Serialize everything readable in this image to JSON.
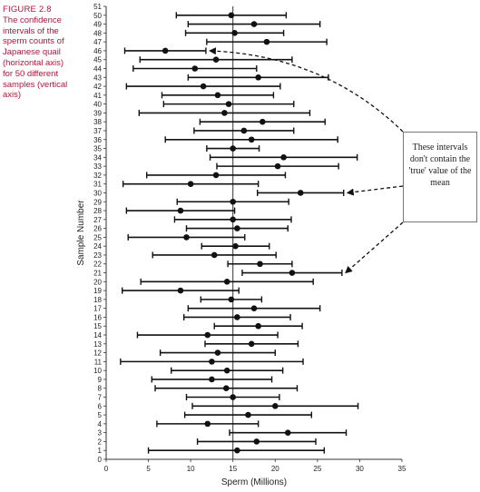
{
  "caption": {
    "figure_label": "FIGURE 2.8",
    "text": "The confidence intervals of the sperm counts of Japanese quail (horizontal axis) for 50 different samples (vertical axis)"
  },
  "callout": {
    "text": "These intervals don't contain the 'true' value of the mean"
  },
  "chart_data": {
    "type": "scatter",
    "title": "",
    "xlabel": "Sperm (Millions)",
    "ylabel": "Sample Number",
    "xlim": [
      0,
      35
    ],
    "ylim": [
      0,
      51
    ],
    "x_ticks": [
      0,
      5,
      10,
      15,
      20,
      25,
      30,
      35
    ],
    "y_ticks": [
      0,
      1,
      2,
      3,
      4,
      5,
      6,
      7,
      8,
      9,
      10,
      11,
      12,
      13,
      14,
      15,
      16,
      17,
      18,
      19,
      20,
      21,
      22,
      23,
      24,
      25,
      26,
      27,
      28,
      29,
      30,
      31,
      32,
      33,
      34,
      35,
      36,
      37,
      38,
      39,
      40,
      41,
      42,
      43,
      44,
      45,
      46,
      47,
      48,
      49,
      50,
      51
    ],
    "true_mean": 15,
    "grid": false,
    "highlighted_samples": [
      30,
      21,
      46
    ],
    "intervals": [
      {
        "sample": 1,
        "mean": 15.5,
        "low": 5.0,
        "high": 25.8
      },
      {
        "sample": 2,
        "mean": 17.8,
        "low": 10.8,
        "high": 24.8
      },
      {
        "sample": 3,
        "mean": 21.5,
        "low": 14.6,
        "high": 28.4
      },
      {
        "sample": 4,
        "mean": 12.0,
        "low": 6.0,
        "high": 18.0
      },
      {
        "sample": 5,
        "mean": 16.8,
        "low": 9.3,
        "high": 24.3
      },
      {
        "sample": 6,
        "mean": 20.0,
        "low": 10.2,
        "high": 29.8
      },
      {
        "sample": 7,
        "mean": 15.0,
        "low": 9.5,
        "high": 20.5
      },
      {
        "sample": 8,
        "mean": 14.2,
        "low": 5.8,
        "high": 22.6
      },
      {
        "sample": 9,
        "mean": 12.5,
        "low": 5.4,
        "high": 19.6
      },
      {
        "sample": 10,
        "mean": 14.3,
        "low": 7.7,
        "high": 20.9
      },
      {
        "sample": 11,
        "mean": 12.5,
        "low": 1.7,
        "high": 23.3
      },
      {
        "sample": 12,
        "mean": 13.2,
        "low": 6.4,
        "high": 20.0
      },
      {
        "sample": 13,
        "mean": 17.2,
        "low": 11.7,
        "high": 22.7
      },
      {
        "sample": 14,
        "mean": 12.0,
        "low": 3.7,
        "high": 20.3
      },
      {
        "sample": 15,
        "mean": 18.0,
        "low": 12.8,
        "high": 23.2
      },
      {
        "sample": 16,
        "mean": 15.5,
        "low": 9.2,
        "high": 21.8
      },
      {
        "sample": 17,
        "mean": 17.5,
        "low": 9.7,
        "high": 25.3
      },
      {
        "sample": 18,
        "mean": 14.8,
        "low": 11.2,
        "high": 18.4
      },
      {
        "sample": 19,
        "mean": 8.8,
        "low": 1.9,
        "high": 15.7
      },
      {
        "sample": 20,
        "mean": 14.3,
        "low": 4.1,
        "high": 24.5
      },
      {
        "sample": 21,
        "mean": 22.0,
        "low": 16.1,
        "high": 27.9
      },
      {
        "sample": 22,
        "mean": 18.2,
        "low": 14.4,
        "high": 22.0
      },
      {
        "sample": 23,
        "mean": 12.8,
        "low": 5.5,
        "high": 20.1
      },
      {
        "sample": 24,
        "mean": 15.3,
        "low": 11.3,
        "high": 19.3
      },
      {
        "sample": 25,
        "mean": 9.5,
        "low": 2.6,
        "high": 16.4
      },
      {
        "sample": 26,
        "mean": 15.5,
        "low": 9.5,
        "high": 21.5
      },
      {
        "sample": 27,
        "mean": 15.0,
        "low": 8.1,
        "high": 21.9
      },
      {
        "sample": 28,
        "mean": 8.8,
        "low": 2.4,
        "high": 15.2
      },
      {
        "sample": 29,
        "mean": 15.0,
        "low": 8.4,
        "high": 21.6
      },
      {
        "sample": 30,
        "mean": 23.0,
        "low": 17.9,
        "high": 28.1
      },
      {
        "sample": 31,
        "mean": 10.0,
        "low": 2.0,
        "high": 18.0
      },
      {
        "sample": 32,
        "mean": 13.0,
        "low": 4.8,
        "high": 21.2
      },
      {
        "sample": 33,
        "mean": 20.3,
        "low": 13.1,
        "high": 27.5
      },
      {
        "sample": 34,
        "mean": 21.0,
        "low": 12.3,
        "high": 29.7
      },
      {
        "sample": 35,
        "mean": 15.0,
        "low": 11.9,
        "high": 18.1
      },
      {
        "sample": 36,
        "mean": 17.2,
        "low": 7.0,
        "high": 27.4
      },
      {
        "sample": 37,
        "mean": 16.3,
        "low": 10.4,
        "high": 22.2
      },
      {
        "sample": 38,
        "mean": 18.5,
        "low": 11.1,
        "high": 25.9
      },
      {
        "sample": 39,
        "mean": 14.0,
        "low": 3.9,
        "high": 24.1
      },
      {
        "sample": 40,
        "mean": 14.5,
        "low": 6.8,
        "high": 22.2
      },
      {
        "sample": 41,
        "mean": 13.2,
        "low": 6.6,
        "high": 19.8
      },
      {
        "sample": 42,
        "mean": 11.5,
        "low": 2.4,
        "high": 20.6
      },
      {
        "sample": 43,
        "mean": 18.0,
        "low": 9.7,
        "high": 26.3
      },
      {
        "sample": 44,
        "mean": 10.5,
        "low": 3.2,
        "high": 17.8
      },
      {
        "sample": 45,
        "mean": 13.0,
        "low": 4.0,
        "high": 22.0
      },
      {
        "sample": 46,
        "mean": 7.0,
        "low": 2.2,
        "high": 11.8
      },
      {
        "sample": 47,
        "mean": 19.0,
        "low": 11.9,
        "high": 26.1
      },
      {
        "sample": 48,
        "mean": 15.2,
        "low": 9.4,
        "high": 21.0
      },
      {
        "sample": 49,
        "mean": 17.5,
        "low": 9.7,
        "high": 25.3
      },
      {
        "sample": 50,
        "mean": 14.8,
        "low": 8.3,
        "high": 21.3
      }
    ]
  }
}
